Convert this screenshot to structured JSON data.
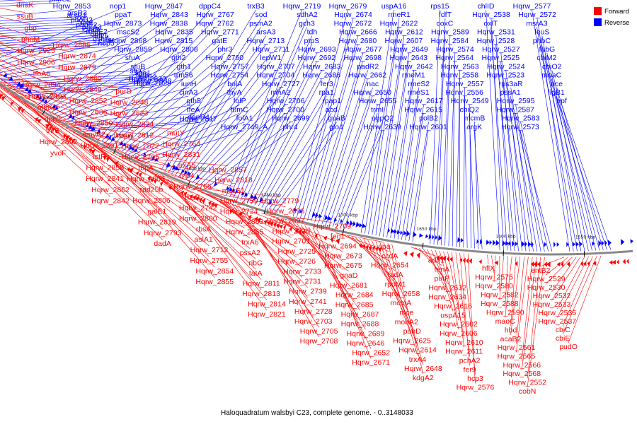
{
  "legend": [
    {
      "label": "Forward",
      "color": "#ff0000"
    },
    {
      "label": "Reverse",
      "color": "#0000ff"
    }
  ],
  "caption": "Haloquadratum walsbyi C23, complete genome. - 0..3148033",
  "backbone_color": "#888888",
  "ticks": [
    {
      "label": "2000 kbp",
      "pos": 2000
    },
    {
      "label": "1950 kbp",
      "pos": 1950
    },
    {
      "label": "1900 kbp",
      "pos": 1900
    },
    {
      "label": "1850 kbp",
      "pos": 1850
    },
    {
      "label": "1800 kbp",
      "pos": 1800
    },
    {
      "label": "1750 kbp",
      "pos": 1750
    },
    {
      "label": "1700 kbp",
      "pos": 1700
    },
    {
      "label": "1650 kbp",
      "pos": 1650
    },
    {
      "label": "1600 kbp",
      "pos": 1600
    },
    {
      "label": "1550 kbp",
      "pos": 1550
    }
  ],
  "reverse_labels": [
    "gyrB",
    "sun",
    "guaD2",
    "aspC4",
    "Hqrw_2936",
    "Hqrw_2926",
    "phnD2",
    "phnG",
    "Hqrw_2902",
    "Hqrw_2887",
    "Hqrw_2895",
    "Hqrw_2881",
    "Hqrw_2897",
    "malQ",
    "phnC2",
    "Hqrw_2853",
    "arsR3",
    "arsR1",
    "pat",
    "phoU2",
    "mat",
    "phnE2",
    "parA3",
    "cyaB",
    "nadE2",
    "ogg",
    "tif2b",
    "gshA",
    "cysK",
    "nop5",
    "nop1",
    "ppaT",
    "Hqrw_2873",
    "mscS2",
    "Hqrw_2868",
    "Hqrw_2859",
    "sfuA",
    "sfuB",
    "sfuC",
    "sga1",
    "fer8",
    "lysE2",
    "Hqrw_2832",
    "Hqrw_2830",
    "Hqrw_2829",
    "Hqrw_2847",
    "Hqrw_2843",
    "Hqrw_2838",
    "Hqrw_2835",
    "Hqrw_2815",
    "Hqrw_2808",
    "gth2",
    "gth1",
    "trm56",
    "iunH",
    "cinA3",
    "gth5",
    "tfeA",
    "dppD4",
    "Hqrw_2817",
    "dppC4",
    "Hqrw_2767",
    "Hqrw_2762",
    "Hqrw_2771",
    "gatE",
    "phr3",
    "Hqrw_2760",
    "Hqrw_2757",
    "Hqrw_2754",
    "bolA",
    "thyA",
    "folP",
    "fumC",
    "folA1",
    "Hqrw_2749_A",
    "trxB3",
    "sod",
    "psmA2",
    "arsA3",
    "Hqrw_2713",
    "Hqrw_2711",
    "lepW1",
    "Hqrw_2707",
    "Hqrw_2704",
    "Hqrw_2727",
    "rnhA2",
    "Hqrw_2706",
    "Hqrw_2700",
    "Hqrw_2699",
    "phr4",
    "Hqrw_2719",
    "sdhA2",
    "gch3",
    "tdh",
    "ptpS",
    "Hqrw_2693",
    "Hqrw_2692",
    "Hqrw_2683",
    "Hqrw_2686",
    "fer3",
    "rpa1",
    "rpap1",
    "acd",
    "guaB",
    "glo4",
    "Hqrw_2679",
    "Hqrw_2674",
    "Hqrw_2672",
    "Hqrw_2666",
    "Hqrw_2680",
    "Hqrw_2677",
    "Hqrw_2698",
    "padR2",
    "Hqrw_2662",
    "nac",
    "Hqrw_2650",
    "Hqrw_2655",
    "trmI",
    "ugpQ2",
    "Hqrw_2639",
    "uspA16",
    "rmeR1",
    "Hqrw_2622",
    "Hqrw_2612",
    "Hqrw_2607",
    "Hqrw_2649",
    "Hqrw_2643",
    "Hqrw_2642",
    "rmeM1",
    "rmeS2",
    "rmeS1",
    "Hqrw_2617",
    "Hqrw_2615",
    "polB2",
    "Hqrw_2601",
    "rps15",
    "fdfT",
    "coxC",
    "Hqrw_2589",
    "Hqrw_2584",
    "Hqrw_2574",
    "Hqrw_2564",
    "Hqrw_2563",
    "Hqrw_2558",
    "Hqrw_2557",
    "Hqrw_2556",
    "Hqrw_2549",
    "cbiQ2",
    "mcmB",
    "argK",
    "chlID",
    "Hqrw_2538",
    "oxlT",
    "Hqrw_2531",
    "Hqrw_2528",
    "Hqrw_2527",
    "Hqrw_2525",
    "Hqrw_2524",
    "Hqrw_2523",
    "rps3aR",
    "pssA1",
    "Hqrw_2595",
    "Hqrw_2587",
    "Hqrw_2583",
    "Hqrw_2573",
    "Hqrw_2577",
    "Hqrw_2572",
    "msrA3",
    "leuS",
    "phbC",
    "fabG",
    "cbiM2",
    "cbiO2",
    "moaC",
    "nce",
    "ligB1",
    "epf"
  ],
  "forward_labels": [
    "cdd",
    "dnaK",
    "ssuB",
    "gbp",
    "phnM",
    "Hqrw_2925",
    "Hqrw_2906",
    "tfbA6",
    "Hqrw_2894",
    "Hqrw_2903",
    "mtfK2",
    "dph2",
    "thrS",
    "Hqrw_2892",
    "yvoF",
    "Hqrw_2885",
    "Hqrw_2874",
    "Hqrw_2879",
    "Hqrw_2860",
    "Hqrw_2849",
    "Hqrw_2852",
    "Hqrw_2836",
    "Hqrw_2850",
    "amyA2",
    "Hqrw_2861",
    "lctP",
    "Hqrw_2858",
    "Hqrw_2841",
    "Hqrw_2862",
    "Hqrw_2842",
    "purD",
    "Hqrw_2848",
    "Hqrw_2823",
    "Hqrw_2834",
    "Hqrw_2812",
    "Hqrw_2822",
    "Hqrw_2795",
    "tbpA",
    "Hqrw_2805",
    "rad25b",
    "Hqrw_2806",
    "galE1",
    "Hqrw_2819",
    "Hqrw_2793",
    "dadA",
    "mutY",
    "Hqrw_2764",
    "Hqrw_2831",
    "trxA5",
    "rnp4",
    "Hqrw_2765",
    "rbsB",
    "Hqrw_2742",
    "Hqrw_2800",
    "rbsA",
    "aslA1",
    "Hqrw_2712",
    "Hqrw_2755",
    "Hqrw_2854",
    "Hqrw_2855",
    "Hqrw_2857",
    "Hqrw_2818",
    "mscS1",
    "Hqrw_2759",
    "Hqrw_2724",
    "Hqrw_2863",
    "Hqrw_2865",
    "trxA6",
    "pssA2",
    "ribG",
    "tatA",
    "Hqrw_2811",
    "Hqrw_2813",
    "Hqrw_2814",
    "Hqrw_2821",
    "Hqrw_2779",
    "Hqrw_2696",
    "Hqrw_2697",
    "Hqrw_2730",
    "Hqrw_2701",
    "Hqrw_2725",
    "Hqrw_2726",
    "Hqrw_2733",
    "Hqrw_2731",
    "Hqrw_2739",
    "Hqrw_2741",
    "Hqrw_2728",
    "Hqrw_2703",
    "Hqrw_2705",
    "Hqrw_2708",
    "Hqrw_2709",
    "fen1",
    "Hqrw_2694",
    "Hqrw_2673",
    "Hqrw_2675",
    "gnaD",
    "Hqrw_2681",
    "Hqrw_2684",
    "Hqrw_2685",
    "Hqrw_2687",
    "Hqrw_2688",
    "Hqrw_2689",
    "Hqrw_2646",
    "Hqrw_2652",
    "Hqrw_2671",
    "apa",
    "ccdA",
    "Hqrw_2654",
    "fadA",
    "rpoM1",
    "Hqrw_2658",
    "mcmA",
    "mce",
    "mobA2",
    "panD",
    "Hqrw_2625",
    "Hqrw_2614",
    "trxA4",
    "Hqrw_2648",
    "kdgA2",
    "adh1",
    "tenA",
    "putP",
    "Hqrw_2632",
    "Hqrw_2634",
    "Hqrw_2616",
    "uspA15",
    "Hqrw_2602",
    "Hqrw_2606",
    "Hqrw_2610",
    "Hqrw_2611",
    "pchA2",
    "fer9",
    "hcp3",
    "Hqrw_2576",
    "hflX",
    "Hqrw_2575",
    "Hqrw_2580",
    "Hqrw_2582",
    "Hqrw_2588",
    "Hqrw_2590",
    "maoC",
    "hbd",
    "acaB2",
    "Hqrw_2561",
    "Hqrw_2565",
    "Hqrw_2566",
    "Hqrw_2568",
    "Hqrw_2552",
    "cobN",
    "entB2",
    "Hqrw_2529",
    "Hqrw_2530",
    "Hqrw_2532",
    "Hqrw_2533",
    "Hqrw_2535",
    "Hqrw_2537",
    "cbiC",
    "cbiE",
    "pudO"
  ]
}
